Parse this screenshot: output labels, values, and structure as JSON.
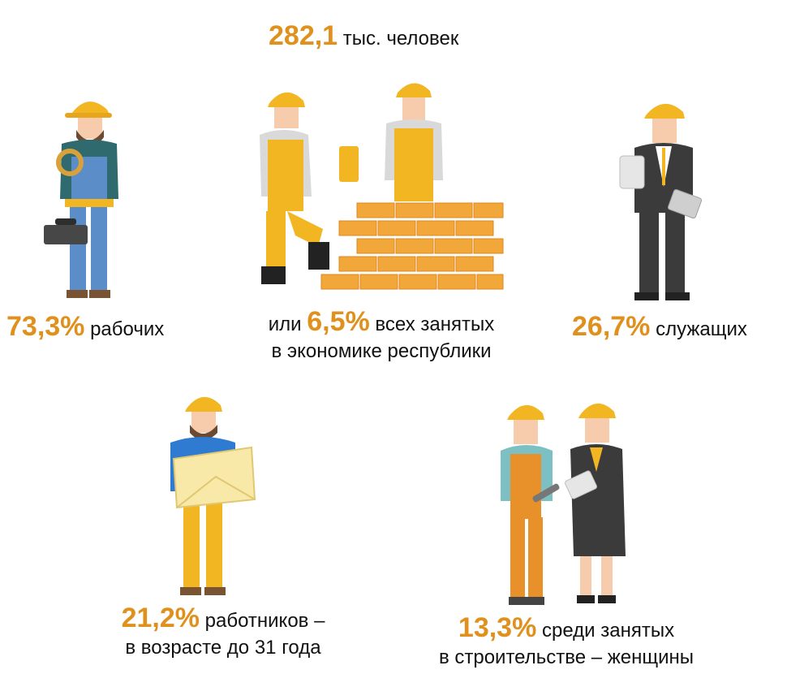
{
  "colors": {
    "accent": "#e0901c",
    "helmet": "#f2b623",
    "skin": "#f6ccad",
    "brick": "#f1a73a",
    "suit": "#3b3b3b",
    "denim": "#5b8dc9"
  },
  "headline": {
    "value": "282,1",
    "unit": "тыс. человек"
  },
  "stats": {
    "workers": {
      "value": "73,3%",
      "label": "рабочих"
    },
    "share": {
      "prefix": "или",
      "value": "6,5%",
      "label": "всех занятых",
      "line2": "в экономике республики"
    },
    "employees": {
      "value": "26,7%",
      "label": "служащих"
    },
    "youth": {
      "value": "21,2%",
      "label": "работников –",
      "line2": "в возрасте до 31 года"
    },
    "women": {
      "value": "13,3%",
      "label": "среди занятых",
      "line2": "в строительстве – женщины"
    }
  },
  "illustrations": [
    "worker-with-toolbox-icon",
    "bricklayers-with-brick-wall-icon",
    "office-employee-with-papers-icon",
    "worker-with-blueprint-icon",
    "women-builders-icon"
  ]
}
